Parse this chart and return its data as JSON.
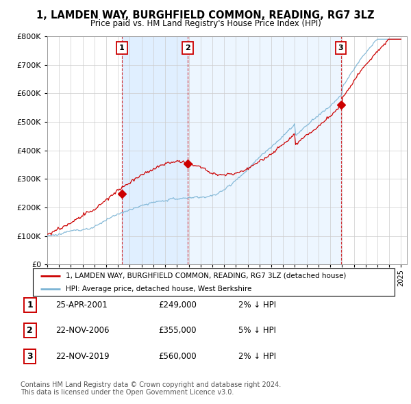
{
  "title1": "1, LAMDEN WAY, BURGHFIELD COMMON, READING, RG7 3LZ",
  "title2": "Price paid vs. HM Land Registry's House Price Index (HPI)",
  "ylim": [
    0,
    800000
  ],
  "yticks": [
    0,
    100000,
    200000,
    300000,
    400000,
    500000,
    600000,
    700000,
    800000
  ],
  "xlim_start": 1995,
  "xlim_end": 2025.5,
  "sale_dates": [
    2001.32,
    2006.9,
    2019.9
  ],
  "sale_prices": [
    249000,
    355000,
    560000
  ],
  "sale_labels": [
    "1",
    "2",
    "3"
  ],
  "legend_line1": "1, LAMDEN WAY, BURGHFIELD COMMON, READING, RG7 3LZ (detached house)",
  "legend_line2": "HPI: Average price, detached house, West Berkshire",
  "table_rows": [
    [
      "1",
      "25-APR-2001",
      "£249,000",
      "2% ↓ HPI"
    ],
    [
      "2",
      "22-NOV-2006",
      "£355,000",
      "5% ↓ HPI"
    ],
    [
      "3",
      "22-NOV-2019",
      "£560,000",
      "2% ↓ HPI"
    ]
  ],
  "footer": "Contains HM Land Registry data © Crown copyright and database right 2024.\nThis data is licensed under the Open Government Licence v3.0.",
  "red_color": "#cc0000",
  "blue_color": "#7ab3d4",
  "shade_color": "#ddeeff",
  "background_color": "#ffffff",
  "grid_color": "#cccccc"
}
